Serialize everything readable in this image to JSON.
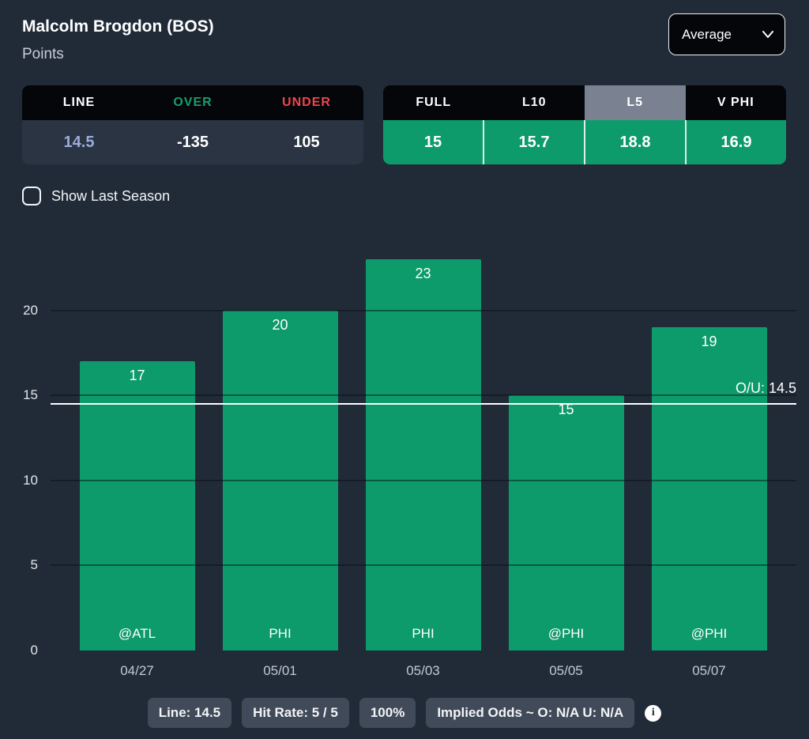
{
  "header": {
    "player_name": "Malcolm Brogdon (BOS)",
    "stat_label": "Points",
    "aggregate_dropdown": {
      "selected": "Average"
    }
  },
  "odds_table": {
    "headers": [
      "LINE",
      "OVER",
      "UNDER"
    ],
    "values": [
      "14.5",
      "-135",
      "105"
    ]
  },
  "splits_table": {
    "headers": [
      "FULL",
      "L10",
      "L5",
      "V PHI"
    ],
    "selected": "L5",
    "values": [
      "15",
      "15.7",
      "18.8",
      "16.9"
    ]
  },
  "show_last_season": {
    "label": "Show Last Season",
    "checked": false
  },
  "chart_data": {
    "type": "bar",
    "title": "",
    "xlabel": "",
    "ylabel": "",
    "categories": [
      "04/27",
      "05/01",
      "05/03",
      "05/05",
      "05/07"
    ],
    "bar_labels": [
      "@ATL",
      "PHI",
      "PHI",
      "@PHI",
      "@PHI"
    ],
    "values": [
      17,
      20,
      23,
      15,
      19
    ],
    "yticks": [
      0,
      5,
      10,
      15,
      20
    ],
    "ylim": [
      0,
      24.3
    ],
    "grid": "horizontal",
    "legend": "none",
    "reference_line": {
      "value": 14.5,
      "label": "O/U: 14.5"
    },
    "bar_color": "#0d9b6b"
  },
  "footer": {
    "badges": [
      "Line: 14.5",
      "Hit Rate: 5 / 5",
      "100%",
      "Implied Odds ~ O: N/A U: N/A"
    ],
    "info_icon": "i"
  },
  "colors": {
    "background": "#212b38",
    "header_black": "#04060a",
    "bar_green": "#0d9b6b",
    "over_green": "#16a06a",
    "under_red": "#f2444f",
    "line_value_blue": "#9aabdb",
    "l5_selected_gray": "#7a8292",
    "reference_line": "#ffffff",
    "badge_gray": "#414a59"
  }
}
